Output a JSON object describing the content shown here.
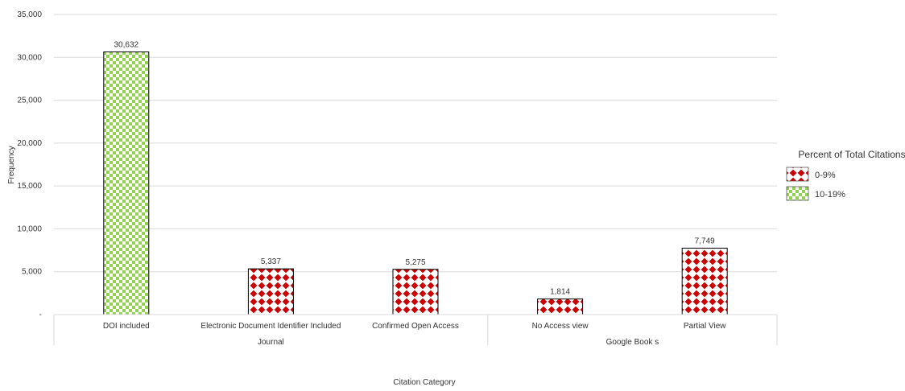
{
  "chart_data": {
    "type": "bar",
    "xlabel": "Citation Category",
    "ylabel": "Frequency",
    "ylim": [
      0,
      35000
    ],
    "yticks": [
      0,
      5000,
      10000,
      15000,
      20000,
      25000,
      30000,
      35000
    ],
    "ytick_labels": [
      "-",
      "5,000",
      "10,000",
      "15,000",
      "20,000",
      "25,000",
      "30,000",
      "35,000"
    ],
    "grid": true,
    "categories": [
      "DOI included",
      "Electronic Document Identifier Included",
      "Confirmed Open Access",
      "No Access view",
      "Partial View"
    ],
    "groups": [
      {
        "label": "Journal",
        "categories": [
          "DOI included",
          "Electronic Document Identifier Included",
          "Confirmed Open Access"
        ]
      },
      {
        "label": "Google Book s",
        "categories": [
          "No Access view",
          "Partial View"
        ]
      }
    ],
    "values": [
      30632,
      5337,
      5275,
      1814,
      7749
    ],
    "data_labels": [
      "30,632",
      "5,337",
      "5,275",
      "1,814",
      "7,749"
    ],
    "bar_percent_class": [
      "10-19%",
      "0-9%",
      "0-9%",
      "0-9%",
      "0-9%"
    ],
    "legend": {
      "title": "Percent of Total Citations",
      "placement": "right",
      "entries": [
        {
          "label": "0-9%",
          "pattern": "red-diamond",
          "color": "#cc0000"
        },
        {
          "label": "10-19%",
          "pattern": "green-checker",
          "color": "#92d050"
        }
      ]
    }
  }
}
